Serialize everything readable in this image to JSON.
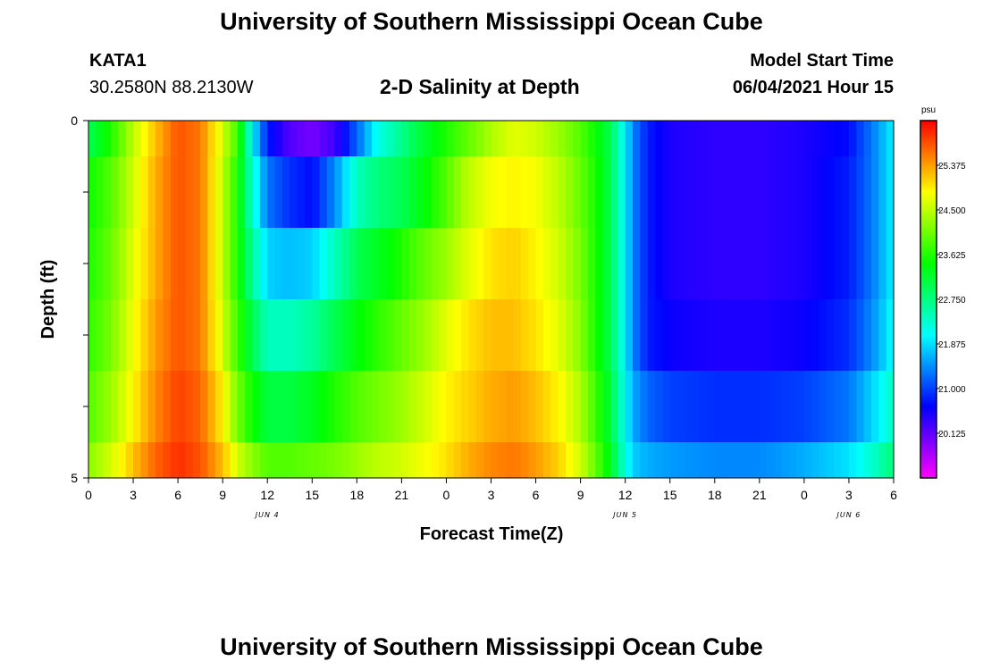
{
  "header": {
    "title": "University of Southern Mississippi Ocean Cube",
    "station_id": "KATA1",
    "coordinates": "30.2580N  88.2130W",
    "model_start_label": "Model Start Time",
    "model_start_value": "06/04/2021 Hour 15"
  },
  "footer": {
    "title": "University of Southern Mississippi Ocean Cube"
  },
  "chart_data": {
    "type": "heatmap",
    "title": "2-D Salinity at Depth",
    "xlabel": "Forecast Time(Z)",
    "ylabel": "Depth (ft)",
    "units": "psu",
    "y_ticks": [
      "0",
      "5"
    ],
    "ylim": [
      0,
      5
    ],
    "x_range_hours": [
      0,
      54
    ],
    "x_tick_labels": [
      "0",
      "3",
      "6",
      "9",
      "12",
      "15",
      "18",
      "21",
      "0",
      "3",
      "6",
      "9",
      "12",
      "15",
      "18",
      "21",
      "0",
      "3",
      "6"
    ],
    "date_labels": [
      {
        "text": "JUN 4",
        "hour": 12
      },
      {
        "text": "JUN 5",
        "hour": 36
      },
      {
        "text": "JUN 6",
        "hour": 51
      }
    ],
    "colorbar": {
      "min": 19.25,
      "max": 26.25,
      "tick_labels": [
        "25.375",
        "24.500",
        "23.625",
        "22.750",
        "21.875",
        "21.000",
        "20.125"
      ],
      "tick_values": [
        25.375,
        24.5,
        23.625,
        22.75,
        21.875,
        21.0,
        20.125
      ]
    },
    "rows": [
      {
        "depth_range": [
          0,
          0.5
        ],
        "hours": [
          0,
          1.5,
          3,
          4.5,
          6,
          7.5,
          9,
          10,
          11,
          12,
          13.5,
          15,
          16.5,
          18,
          19.5,
          21,
          22.5,
          24,
          25.5,
          27,
          28.5,
          30,
          31.5,
          33,
          34,
          35,
          36,
          36.5,
          37.5,
          39,
          42,
          45,
          48,
          51,
          52.5,
          54
        ],
        "values": [
          23.0,
          23.6,
          24.5,
          25.2,
          25.8,
          25.6,
          24.6,
          23.8,
          22.0,
          20.8,
          20.2,
          20.0,
          20.3,
          21.2,
          22.2,
          22.7,
          23.2,
          23.6,
          24.0,
          24.4,
          24.7,
          24.6,
          24.3,
          23.9,
          23.5,
          23.0,
          22.0,
          21.4,
          20.8,
          20.5,
          20.4,
          20.4,
          20.5,
          20.7,
          21.3,
          22.0
        ]
      },
      {
        "depth_range": [
          0.5,
          1.5
        ],
        "hours": [
          0,
          1.5,
          3,
          4.5,
          6,
          7.5,
          9,
          10,
          11,
          12,
          13.5,
          15,
          16.5,
          18,
          19.5,
          21,
          22.5,
          24,
          25.5,
          27,
          28.5,
          30,
          31.5,
          33,
          34,
          35,
          36,
          36.5,
          37.5,
          39,
          42,
          45,
          48,
          51,
          52.5,
          54
        ],
        "values": [
          23.5,
          23.9,
          24.6,
          25.3,
          25.8,
          25.6,
          24.5,
          23.6,
          22.3,
          21.3,
          20.9,
          20.7,
          21.4,
          22.4,
          22.8,
          23.0,
          23.4,
          23.9,
          24.5,
          24.8,
          24.9,
          24.8,
          24.5,
          24.0,
          23.6,
          23.0,
          22.0,
          21.4,
          20.8,
          20.5,
          20.4,
          20.4,
          20.5,
          20.8,
          21.3,
          22.0
        ]
      },
      {
        "depth_range": [
          1.5,
          2.5
        ],
        "hours": [
          0,
          1.5,
          3,
          4.5,
          6,
          7.5,
          9,
          10,
          11,
          12,
          13.5,
          15,
          16.5,
          18,
          19.5,
          21,
          22.5,
          24,
          25.5,
          27,
          28.5,
          30,
          31.5,
          33,
          34,
          35,
          36,
          36.5,
          37.5,
          39,
          42,
          45,
          48,
          51,
          52.5,
          54
        ],
        "values": [
          23.6,
          24.0,
          24.7,
          25.3,
          25.8,
          25.6,
          24.5,
          23.6,
          22.6,
          21.8,
          21.7,
          21.8,
          22.4,
          23.0,
          23.3,
          23.6,
          24.0,
          24.3,
          24.7,
          25.0,
          25.1,
          24.9,
          24.6,
          24.1,
          23.6,
          23.0,
          22.0,
          21.4,
          20.8,
          20.5,
          20.4,
          20.4,
          20.5,
          20.8,
          21.3,
          22.0
        ]
      },
      {
        "depth_range": [
          2.5,
          3.5
        ],
        "hours": [
          0,
          1.5,
          3,
          4.5,
          6,
          7.5,
          9,
          10,
          11,
          12,
          13.5,
          15,
          16.5,
          18,
          19.5,
          21,
          22.5,
          24,
          25.5,
          27,
          28.5,
          30,
          31.5,
          33,
          34,
          35,
          36,
          36.5,
          37.5,
          39,
          42,
          45,
          48,
          51,
          52.5,
          54
        ],
        "values": [
          23.7,
          24.1,
          24.8,
          25.4,
          25.8,
          25.6,
          24.6,
          23.8,
          23.0,
          22.4,
          22.4,
          22.6,
          23.0,
          23.4,
          23.7,
          24.0,
          24.3,
          24.7,
          25.0,
          25.2,
          25.2,
          25.0,
          24.7,
          24.2,
          23.6,
          23.0,
          22.0,
          21.4,
          20.8,
          20.6,
          20.5,
          20.5,
          20.6,
          20.9,
          21.4,
          22.1
        ]
      },
      {
        "depth_range": [
          3.5,
          4.5
        ],
        "hours": [
          0,
          1.5,
          3,
          4.5,
          6,
          7.5,
          9,
          10,
          11,
          12,
          13.5,
          15,
          16.5,
          18,
          19.5,
          21,
          22.5,
          24,
          25.5,
          27,
          28.5,
          30,
          31.5,
          33,
          34,
          35,
          36,
          36.5,
          37.5,
          39,
          42,
          45,
          48,
          51,
          52.5,
          54
        ],
        "values": [
          23.9,
          24.3,
          24.9,
          25.5,
          25.9,
          25.7,
          24.9,
          24.1,
          23.5,
          23.1,
          23.1,
          23.3,
          23.6,
          23.9,
          24.1,
          24.3,
          24.6,
          24.9,
          25.1,
          25.3,
          25.4,
          25.2,
          24.9,
          24.4,
          23.8,
          23.1,
          22.1,
          21.6,
          21.2,
          21.0,
          20.9,
          20.9,
          21.0,
          21.3,
          21.8,
          22.4
        ]
      },
      {
        "depth_range": [
          4.5,
          5
        ],
        "hours": [
          0,
          1.5,
          3,
          4.5,
          6,
          7.5,
          9,
          10,
          11,
          12,
          13.5,
          15,
          16.5,
          18,
          19.5,
          21,
          22.5,
          24,
          25.5,
          27,
          28.5,
          30,
          31.5,
          33,
          34,
          35,
          36,
          36.5,
          37.5,
          39,
          42,
          45,
          48,
          51,
          52.5,
          54
        ],
        "values": [
          24.2,
          24.6,
          25.2,
          25.7,
          26.0,
          25.8,
          25.2,
          24.6,
          24.2,
          23.9,
          23.9,
          24.0,
          24.1,
          24.3,
          24.5,
          24.6,
          24.8,
          25.0,
          25.3,
          25.5,
          25.6,
          25.4,
          25.1,
          24.6,
          24.0,
          23.3,
          22.2,
          21.8,
          21.6,
          21.5,
          21.4,
          21.4,
          21.6,
          21.9,
          22.3,
          22.8
        ]
      }
    ]
  }
}
